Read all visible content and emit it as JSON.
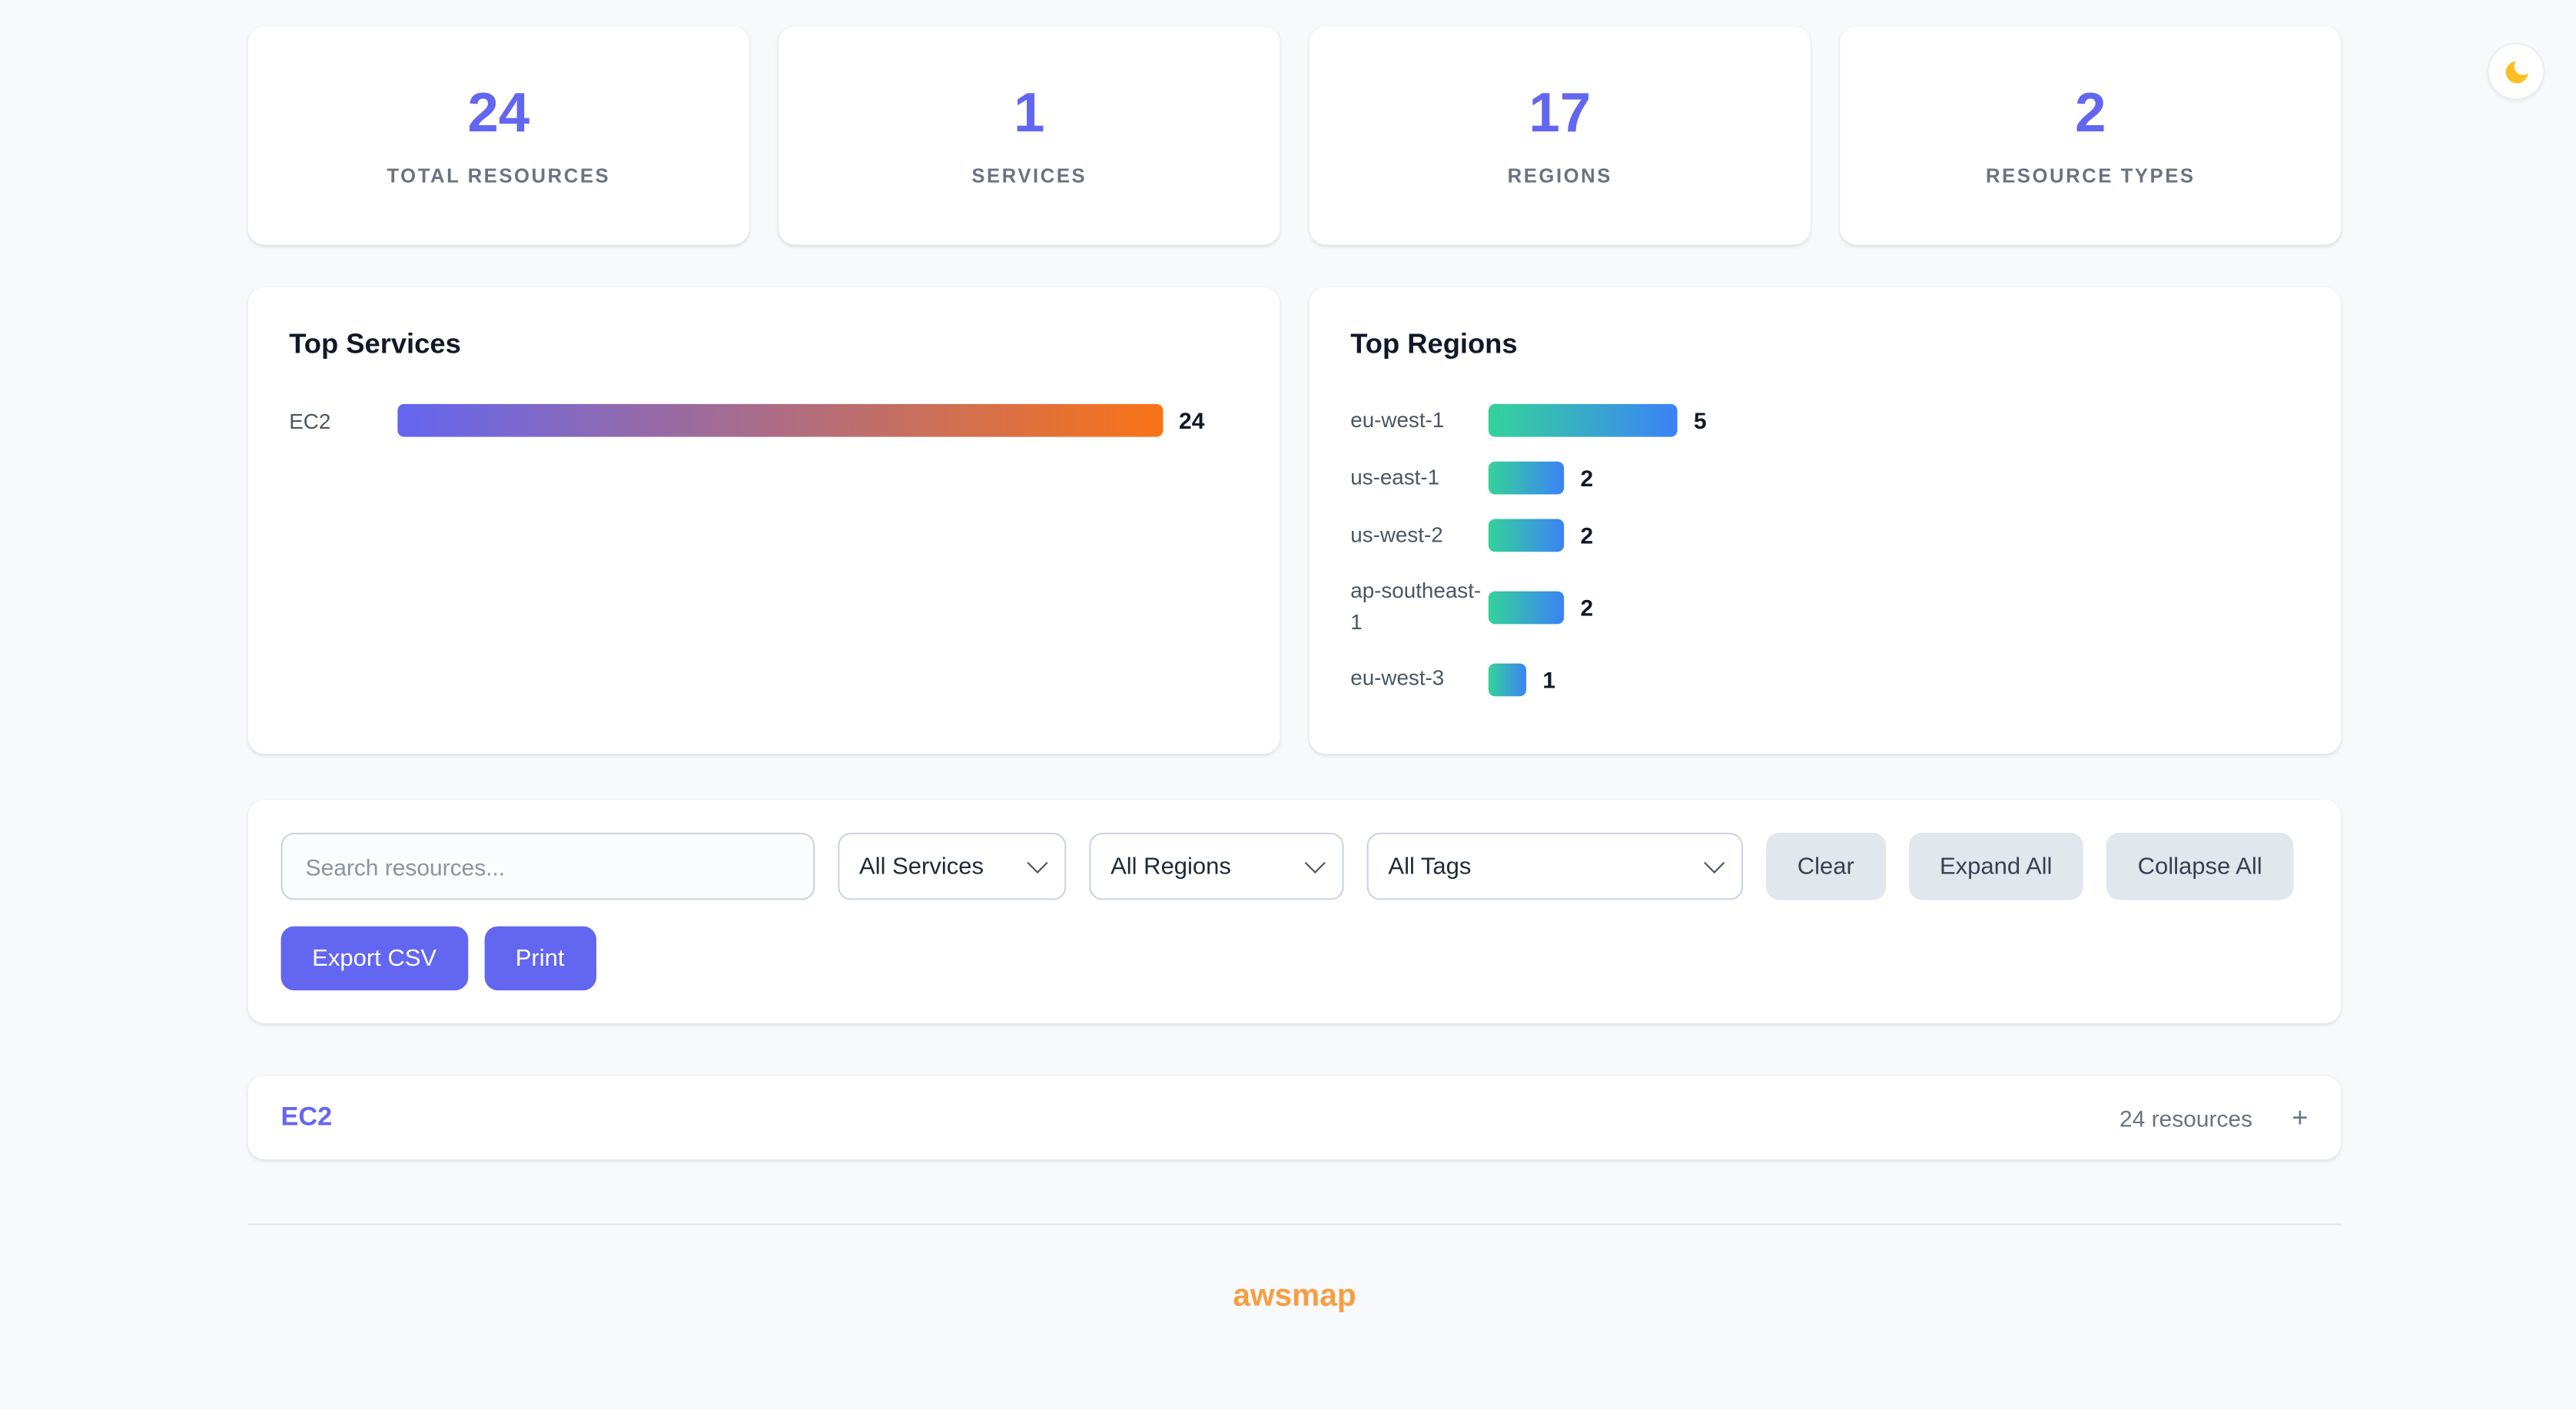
{
  "theme": {
    "accent": "#6366f1",
    "brand_orange": "#f59e42",
    "services_bar_gradient": [
      "#6366f1",
      "#f97316"
    ],
    "regions_bar_gradient": [
      "#34d399",
      "#3b82f6"
    ]
  },
  "stats": [
    {
      "value": "24",
      "label": "TOTAL RESOURCES"
    },
    {
      "value": "1",
      "label": "SERVICES"
    },
    {
      "value": "17",
      "label": "REGIONS"
    },
    {
      "value": "2",
      "label": "RESOURCE TYPES"
    }
  ],
  "top_services": {
    "title": "Top Services",
    "items": [
      {
        "label": "EC2",
        "value": 24
      }
    ]
  },
  "top_regions": {
    "title": "Top Regions",
    "items": [
      {
        "label": "eu-west-1",
        "value": 5
      },
      {
        "label": "us-east-1",
        "value": 2
      },
      {
        "label": "us-west-2",
        "value": 2
      },
      {
        "label": "ap-southeast-1",
        "value": 2
      },
      {
        "label": "eu-west-3",
        "value": 1
      }
    ]
  },
  "filters": {
    "search_placeholder": "Search resources...",
    "services_select": "All Services",
    "regions_select": "All Regions",
    "tags_select": "All Tags",
    "clear_label": "Clear",
    "expand_all_label": "Expand All",
    "collapse_all_label": "Collapse All",
    "export_csv_label": "Export CSV",
    "print_label": "Print"
  },
  "service_groups": [
    {
      "name": "EC2",
      "count_label": "24 resources",
      "expand_icon": "+"
    }
  ],
  "footer": {
    "brand": "awsmap"
  },
  "chart_data": [
    {
      "type": "bar",
      "orientation": "horizontal",
      "title": "Top Services",
      "categories": [
        "EC2"
      ],
      "values": [
        24
      ],
      "xlabel": "",
      "ylabel": "",
      "value_labels_shown": true
    },
    {
      "type": "bar",
      "orientation": "horizontal",
      "title": "Top Regions",
      "categories": [
        "eu-west-1",
        "us-east-1",
        "us-west-2",
        "ap-southeast-1",
        "eu-west-3"
      ],
      "values": [
        5,
        2,
        2,
        2,
        1
      ],
      "xlabel": "",
      "ylabel": "",
      "value_labels_shown": true
    }
  ]
}
